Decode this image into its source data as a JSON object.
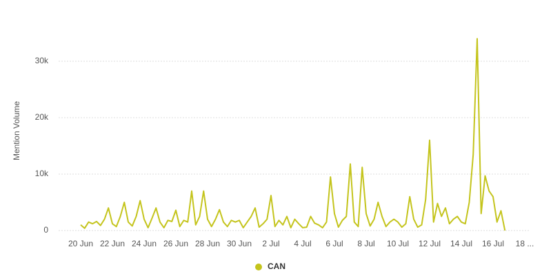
{
  "chart_data": {
    "type": "line",
    "y_axis_label": "Mention Volume",
    "categories": [
      "20 Jun",
      null,
      null,
      null,
      null,
      null,
      null,
      null,
      "22 Jun",
      null,
      null,
      null,
      null,
      null,
      null,
      null,
      "24 Jun",
      null,
      null,
      null,
      null,
      null,
      null,
      null,
      "26 Jun",
      null,
      null,
      null,
      null,
      null,
      null,
      null,
      "28 Jun",
      null,
      null,
      null,
      null,
      null,
      null,
      null,
      "30 Jun",
      null,
      null,
      null,
      null,
      null,
      null,
      null,
      "2 Jul",
      null,
      null,
      null,
      null,
      null,
      null,
      null,
      "4 Jul",
      null,
      null,
      null,
      null,
      null,
      null,
      null,
      "6 Jul",
      null,
      null,
      null,
      null,
      null,
      null,
      null,
      "8 Jul",
      null,
      null,
      null,
      null,
      null,
      null,
      null,
      "10 Jul",
      null,
      null,
      null,
      null,
      null,
      null,
      null,
      "12 Jul",
      null,
      null,
      null,
      null,
      null,
      null,
      null,
      "14 Jul",
      null,
      null,
      null,
      null,
      null,
      null,
      null,
      "16 Jul",
      null,
      null,
      null,
      null,
      null,
      null,
      null,
      "18 ..."
    ],
    "series": [
      {
        "name": "CAN",
        "color": "#c4c41c",
        "values": [
          1000,
          400,
          1500,
          1200,
          1600,
          900,
          2000,
          4000,
          1200,
          700,
          2500,
          5000,
          1500,
          800,
          2500,
          5300,
          2000,
          500,
          2200,
          4000,
          1500,
          500,
          1800,
          1600,
          3600,
          700,
          1800,
          1500,
          7000,
          1000,
          2500,
          7000,
          2000,
          700,
          2000,
          3700,
          1500,
          700,
          1800,
          1500,
          1800,
          500,
          1500,
          2500,
          4000,
          600,
          1200,
          2000,
          6200,
          700,
          1800,
          1000,
          2500,
          500,
          2000,
          1200,
          500,
          600,
          2500,
          1300,
          1000,
          500,
          1500,
          9500,
          3000,
          600,
          1800,
          2500,
          11800,
          1500,
          700,
          11200,
          3000,
          800,
          2000,
          5000,
          2500,
          700,
          1500,
          2000,
          1500,
          600,
          1200,
          6000,
          2000,
          600,
          1000,
          5500,
          16000,
          1500,
          4800,
          2500,
          4000,
          1200,
          2000,
          2500,
          1500,
          1200,
          5000,
          13500,
          34000,
          3000,
          9700,
          7000,
          6000,
          1500,
          3500,
          0,
          null,
          null,
          null,
          null,
          null
        ]
      }
    ],
    "ylim": [
      0,
      35000
    ],
    "yticks": [
      0,
      {
        "value": 10000,
        "label": "10k"
      },
      {
        "value": 20000,
        "label": "20k"
      },
      {
        "value": 30000,
        "label": "30k"
      }
    ],
    "grid": true,
    "legend": "bottom"
  }
}
